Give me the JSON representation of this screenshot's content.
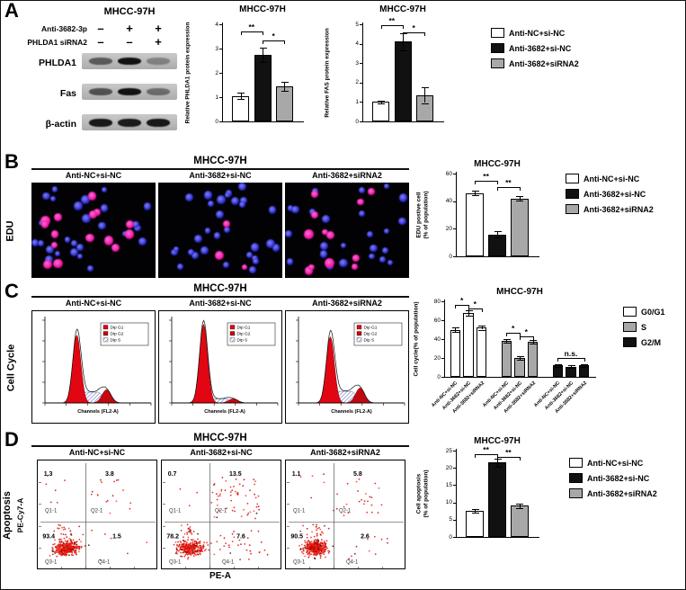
{
  "legend_conditions": [
    {
      "label": "Anti-NC+si-NC",
      "color": "#ffffff"
    },
    {
      "label": "Anti-3682+si-NC",
      "color": "#111111"
    },
    {
      "label": "Anti-3682+siRNA2",
      "color": "#a8a8a8"
    }
  ],
  "legend_phases": [
    {
      "label": "G0/G1",
      "color": "#ffffff"
    },
    {
      "label": "S",
      "color": "#a8a8a8"
    },
    {
      "label": "G2/M",
      "color": "#111111"
    }
  ],
  "panelA": {
    "label": "A",
    "blot": {
      "title": "MHCC-97H",
      "condition_rows": [
        {
          "label": "Anti-3682-3p",
          "symbols": [
            "–",
            "+",
            "+"
          ]
        },
        {
          "label": "PHLDA1 siRNA2",
          "symbols": [
            "–",
            "–",
            "+"
          ]
        }
      ],
      "bands": [
        {
          "label": "PHLDA1",
          "intensities": [
            0.55,
            0.95,
            0.32
          ]
        },
        {
          "label": "Fas",
          "intensities": [
            0.6,
            0.95,
            0.45
          ]
        },
        {
          "label": "β-actin",
          "intensities": [
            0.92,
            0.9,
            0.92
          ]
        }
      ]
    }
  },
  "panelB": {
    "label": "B",
    "row_label": "EDU",
    "title": "MHCC-97H",
    "conditions": [
      "Anti-NC+si-NC",
      "Anti-3682+si-NC",
      "Anti-3682+siRNA2"
    ],
    "images": [
      {
        "pink_cells": 15,
        "blue_cells": 26
      },
      {
        "pink_cells": 3,
        "blue_cells": 30
      },
      {
        "pink_cells": 13,
        "blue_cells": 24
      }
    ]
  },
  "panelC": {
    "label": "C",
    "row_label": "Cell Cycle",
    "title": "MHCC-97H",
    "conditions": [
      "Anti-NC+si-NC",
      "Anti-3682+si-NC",
      "Anti-3682+siRNA2"
    ],
    "hist_legend": [
      "Dip G1",
      "Dip G2",
      "Dip S"
    ],
    "hist_xlabel": "Channels (FL2-A)",
    "histograms": [
      {
        "g1": 0.82,
        "g2": 0.16,
        "s": 0.13
      },
      {
        "g1": 0.95,
        "g2": 0.05,
        "s": 0.05
      },
      {
        "g1": 0.8,
        "g2": 0.18,
        "s": 0.14
      }
    ]
  },
  "panelD": {
    "label": "D",
    "row_label_1": "Apoptosis",
    "row_label_2": "PE-Cy7-A",
    "title": "MHCC-97H",
    "xlabel": "PE-A",
    "conditions": [
      "Anti-NC+si-NC",
      "Anti-3682+si-NC",
      "Anti-3682+siRNA2"
    ],
    "quadrant_labels": [
      "Q1-1",
      "Q2-1",
      "Q3-1",
      "Q4-1"
    ],
    "scatters": [
      {
        "q1": "1.3",
        "q2": "3.8",
        "q3": "93.4",
        "q4": "1.5"
      },
      {
        "q1": "0.7",
        "q2": "13.5",
        "q3": "78.2",
        "q4": "7.6"
      },
      {
        "q1": "1.1",
        "q2": "5.8",
        "q3": "90.5",
        "q4": "2.6"
      }
    ]
  },
  "chart_data": [
    {
      "id": "phlda1_protein",
      "type": "bar",
      "title": "MHCC-97H",
      "ylabel": "Relative PHLDA1 protein expression",
      "categories": [
        "Anti-NC+si-NC",
        "Anti-3682+si-NC",
        "Anti-3682+siRNA2"
      ],
      "values": [
        1.05,
        2.75,
        1.45
      ],
      "errors": [
        0.12,
        0.3,
        0.18
      ],
      "colors": [
        "#ffffff",
        "#111111",
        "#a8a8a8"
      ],
      "ylim": [
        0,
        4
      ],
      "yticks": [
        0,
        1,
        2,
        3,
        4
      ],
      "sig": [
        {
          "a": 0,
          "b": 1,
          "label": "**",
          "y": 3.7
        },
        {
          "a": 1,
          "b": 2,
          "label": "*",
          "y": 3.35
        }
      ]
    },
    {
      "id": "fas_protein",
      "type": "bar",
      "title": "MHCC-97H",
      "ylabel": "Relative FAS protein expression",
      "categories": [
        "Anti-NC+si-NC",
        "Anti-3682+si-NC",
        "Anti-3682+siRNA2"
      ],
      "values": [
        1.0,
        4.1,
        1.35
      ],
      "errors": [
        0.08,
        0.45,
        0.4
      ],
      "colors": [
        "#ffffff",
        "#111111",
        "#a8a8a8"
      ],
      "ylim": [
        0,
        5
      ],
      "yticks": [
        0,
        1,
        2,
        3,
        4,
        5
      ],
      "sig": [
        {
          "a": 0,
          "b": 1,
          "label": "**",
          "y": 4.95
        },
        {
          "a": 1,
          "b": 2,
          "label": "*",
          "y": 4.6
        }
      ]
    },
    {
      "id": "edu_positive",
      "type": "bar",
      "title": "MHCC-97H",
      "ylabel_lines": [
        "EDU postive cell",
        "(% of population)"
      ],
      "categories": [
        "Anti-NC+si-NC",
        "Anti-3682+si-NC",
        "Anti-3682+siRNA2"
      ],
      "values": [
        46,
        16,
        42
      ],
      "errors": [
        1.5,
        2.5,
        1.5
      ],
      "colors": [
        "#ffffff",
        "#111111",
        "#a8a8a8"
      ],
      "ylim": [
        0,
        60
      ],
      "yticks": [
        0,
        20,
        40,
        60
      ],
      "sig": [
        {
          "a": 0,
          "b": 1,
          "label": "**",
          "y": 55
        },
        {
          "a": 1,
          "b": 2,
          "label": "**",
          "y": 50.5
        }
      ]
    },
    {
      "id": "cell_cycle",
      "type": "bar",
      "title": "MHCC-97H",
      "ylabel": "Cell cycle(% of population)",
      "categories": [
        "Anti-NC+si-NC",
        "Anti-3682+si-NC",
        "Anti-3682+siRNA2"
      ],
      "group_size": 3,
      "series": [
        {
          "name": "G0/G1",
          "values": [
            50,
            68,
            52
          ],
          "errors": [
            2,
            3,
            2
          ]
        },
        {
          "name": "S",
          "values": [
            38,
            20,
            37
          ],
          "errors": [
            2,
            2,
            2
          ]
        },
        {
          "name": "G2/M",
          "values": [
            12,
            11,
            12
          ],
          "errors": [
            1,
            1,
            1
          ]
        }
      ],
      "series_colors": [
        "#ffffff",
        "#a8a8a8",
        "#111111"
      ],
      "ylim": [
        0,
        80
      ],
      "yticks": [
        0,
        20,
        40,
        60,
        80
      ],
      "sig": [
        {
          "a": 0,
          "b": 1,
          "label": "*",
          "y": 76
        },
        {
          "a": 1,
          "b": 2,
          "label": "*",
          "y": 72.5
        },
        {
          "a": 3,
          "b": 4,
          "label": "*",
          "y": 47
        },
        {
          "a": 4,
          "b": 5,
          "label": "*",
          "y": 42.5
        },
        {
          "a": 6,
          "b": 8,
          "label": "n.s.",
          "y": 20
        }
      ]
    },
    {
      "id": "cell_apoptosis",
      "type": "bar",
      "title": "MHCC-97H",
      "ylabel_lines": [
        "Cell apoptosis",
        "(% of population)"
      ],
      "categories": [
        "Anti-NC+si-NC",
        "Anti-3682+si-NC",
        "Anti-3682+siRNA2"
      ],
      "values": [
        7.5,
        21.5,
        9
      ],
      "errors": [
        0.5,
        1.2,
        0.6
      ],
      "colors": [
        "#ffffff",
        "#111111",
        "#a8a8a8"
      ],
      "ylim": [
        0,
        25
      ],
      "yticks": [
        0,
        5,
        10,
        15,
        20,
        25
      ],
      "sig": [
        {
          "a": 0,
          "b": 1,
          "label": "**",
          "y": 24
        },
        {
          "a": 1,
          "b": 2,
          "label": "**",
          "y": 23.2
        }
      ]
    }
  ]
}
